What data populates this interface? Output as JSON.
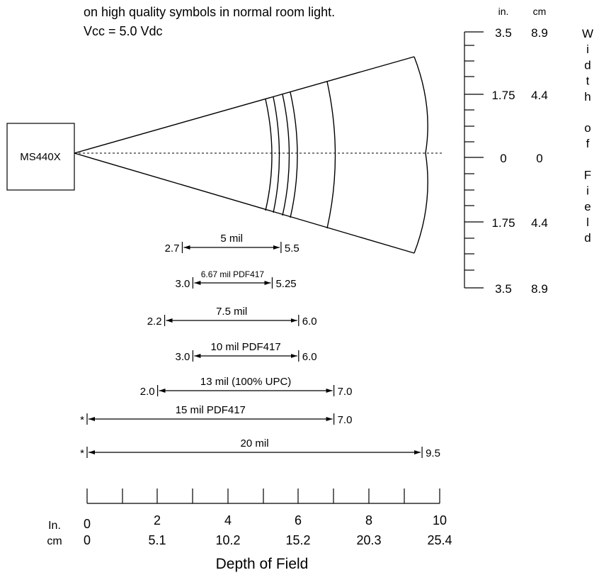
{
  "header": {
    "line1": "on high quality symbols in normal room light.",
    "line2": "Vcc = 5.0 Vdc"
  },
  "scanner_label": "MS440X",
  "width_scale": {
    "unit_in": "in.",
    "unit_cm": "cm",
    "ticks": [
      {
        "in": "3.5",
        "cm": "8.9"
      },
      {
        "in": "1.75",
        "cm": "4.4"
      },
      {
        "in": "0",
        "cm": "0"
      },
      {
        "in": "1.75",
        "cm": "4.4"
      },
      {
        "in": "3.5",
        "cm": "8.9"
      }
    ],
    "title": "Width of Field"
  },
  "ranges": [
    {
      "label": "5 mil",
      "min": "2.7",
      "max": "5.5",
      "min_in": 2.7,
      "max_in": 5.5
    },
    {
      "label": "6.67 mil PDF417",
      "min": "3.0",
      "max": "5.25",
      "min_in": 3.0,
      "max_in": 5.25
    },
    {
      "label": "7.5 mil",
      "min": "2.2",
      "max": "6.0",
      "min_in": 2.2,
      "max_in": 6.0
    },
    {
      "label": "10 mil PDF417",
      "min": "3.0",
      "max": "6.0",
      "min_in": 3.0,
      "max_in": 6.0
    },
    {
      "label": "13 mil (100% UPC)",
      "min": "2.0",
      "max": "7.0",
      "min_in": 2.0,
      "max_in": 7.0
    },
    {
      "label": "15 mil PDF417",
      "min": "*",
      "max": "7.0",
      "min_in": 0,
      "max_in": 7.0
    },
    {
      "label": "20 mil",
      "min": "*",
      "max": "9.5",
      "min_in": 0,
      "max_in": 9.5
    }
  ],
  "depth_axis": {
    "row_in_label": "In.",
    "row_cm_label": "cm",
    "ticks_in": [
      "0",
      "2",
      "4",
      "6",
      "8",
      "10"
    ],
    "ticks_cm": [
      "0",
      "5.1",
      "10.2",
      "15.2",
      "20.3",
      "25.4"
    ],
    "title": "Depth of Field"
  }
}
